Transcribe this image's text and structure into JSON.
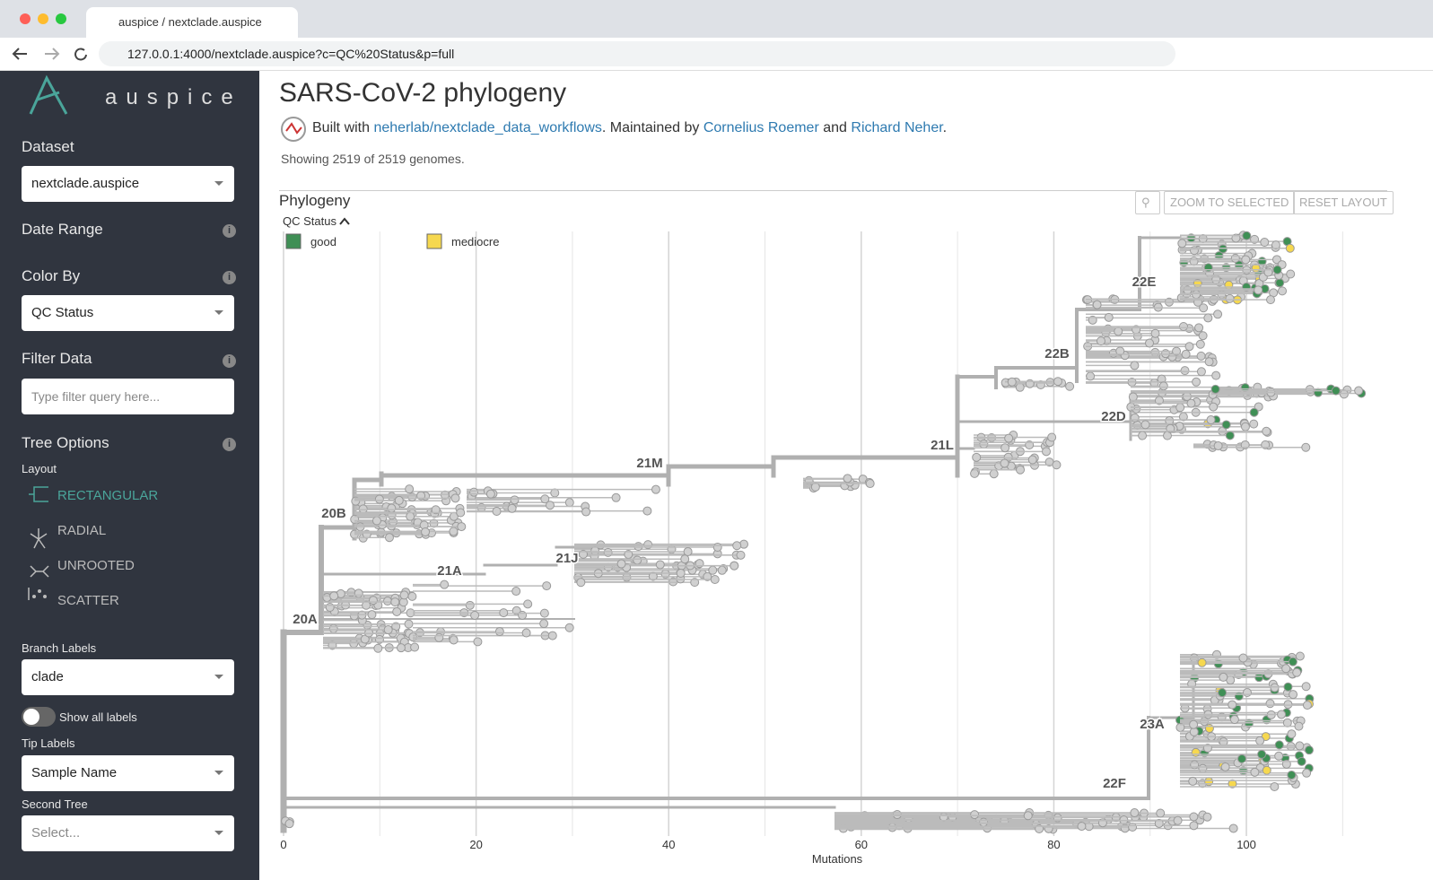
{
  "browser": {
    "tab_title": "auspice / nextclade.auspice",
    "url": "127.0.0.1:4000/nextclade.auspice?c=QC%20Status&p=full"
  },
  "sidebar": {
    "logo_text": "auspice",
    "dataset_label": "Dataset",
    "dataset_value": "nextclade.auspice",
    "date_range": "Date Range",
    "color_by": "Color By",
    "color_by_value": "QC Status",
    "filter_data": "Filter Data",
    "filter_placeholder": "Type filter query here...",
    "tree_options": "Tree Options",
    "layout": "Layout",
    "layouts": [
      "RECTANGULAR",
      "RADIAL",
      "UNROOTED",
      "SCATTER"
    ],
    "branch_labels": "Branch Labels",
    "branch_labels_value": "clade",
    "show_all_labels": "Show all labels",
    "tip_labels": "Tip Labels",
    "tip_labels_value": "Sample Name",
    "second_tree": "Second Tree",
    "second_tree_placeholder": "Select..."
  },
  "header": {
    "title": "SARS-CoV-2 phylogeny",
    "built_with": "Built with",
    "repo_link": "neherlab/nextclade_data_workflows",
    "maintained_by": ". Maintained by",
    "author1": "Cornelius Roemer",
    "and": "and",
    "author2": "Richard Neher",
    "end": ".",
    "showing": "Showing 2519 of 2519 genomes."
  },
  "panel": {
    "title": "Phylogeny",
    "buttons": [
      "ZOOM TO SELECTED",
      "RESET LAYOUT"
    ],
    "legend_title": "QC Status",
    "legend": [
      {
        "label": "good",
        "color": "#3f8f55"
      },
      {
        "label": "mediocre",
        "color": "#f6d84f"
      }
    ],
    "clade_labels": [
      "22E",
      "22B",
      "22D",
      "21L",
      "21M",
      "21J",
      "21A",
      "20B",
      "20A",
      "23A",
      "22F"
    ],
    "x_label": "Mutations",
    "xlim": [
      0,
      115
    ],
    "xticks": [
      0,
      20,
      40,
      60,
      80,
      100
    ],
    "grid": true
  }
}
